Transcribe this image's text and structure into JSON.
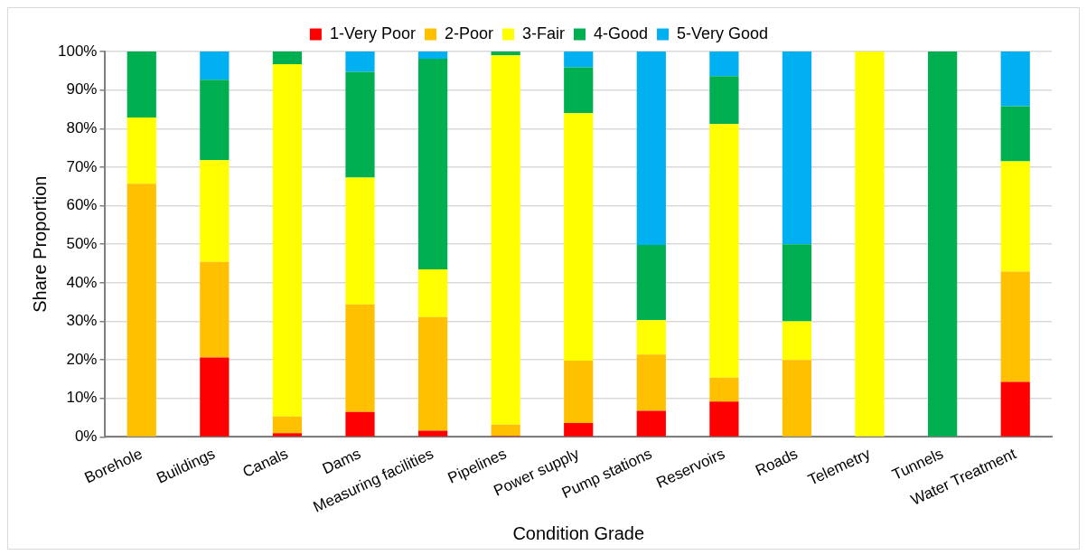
{
  "chart_data": {
    "type": "bar",
    "stacked": true,
    "xlabel": "Condition Grade",
    "ylabel": "Share Proportion",
    "categories": [
      "Borehole",
      "Buildings",
      "Canals",
      "Dams",
      "Measuring facilities",
      "Pipelines",
      "Power supply",
      "Pump stations",
      "Reservoirs",
      "Roads",
      "Telemetry",
      "Tunnels",
      "Water Treatment"
    ],
    "series": [
      {
        "name": "1-Very Poor",
        "color": "#ff0000",
        "values": [
          0,
          20.6,
          1.0,
          6.5,
          1.6,
          0.3,
          3.6,
          6.8,
          9.2,
          0,
          0,
          0,
          14.3
        ]
      },
      {
        "name": "2-Poor",
        "color": "#ffc000",
        "values": [
          65.7,
          24.8,
          4.3,
          27.9,
          29.5,
          2.9,
          16.2,
          14.6,
          6.2,
          20,
          0,
          0,
          28.6
        ]
      },
      {
        "name": "3-Fair",
        "color": "#ffff00",
        "values": [
          17.2,
          26.4,
          91.4,
          32.9,
          12.4,
          95.8,
          64.2,
          8.9,
          65.8,
          10,
          100,
          0,
          28.6
        ]
      },
      {
        "name": "4-Good",
        "color": "#00b050",
        "values": [
          17.1,
          20.9,
          3.3,
          27.4,
          54.6,
          1.0,
          11.9,
          19.5,
          12.4,
          20,
          0,
          100,
          14.3
        ]
      },
      {
        "name": "5-Very Good",
        "color": "#00b0f0",
        "values": [
          0,
          7.3,
          0,
          5.3,
          1.9,
          0,
          4.1,
          50.2,
          6.4,
          50,
          0,
          0,
          14.2
        ]
      }
    ],
    "ylim": [
      0,
      100
    ],
    "yticks": [
      {
        "value": 0,
        "label": "0%"
      },
      {
        "value": 10,
        "label": "10%"
      },
      {
        "value": 20,
        "label": "20%"
      },
      {
        "value": 30,
        "label": "30%"
      },
      {
        "value": 40,
        "label": "40%"
      },
      {
        "value": 50,
        "label": "50%"
      },
      {
        "value": 60,
        "label": "60%"
      },
      {
        "value": 70,
        "label": "70%"
      },
      {
        "value": 80,
        "label": "80%"
      },
      {
        "value": 90,
        "label": "90%"
      },
      {
        "value": 100,
        "label": "100%"
      }
    ],
    "grid": "y",
    "legend": "top"
  }
}
